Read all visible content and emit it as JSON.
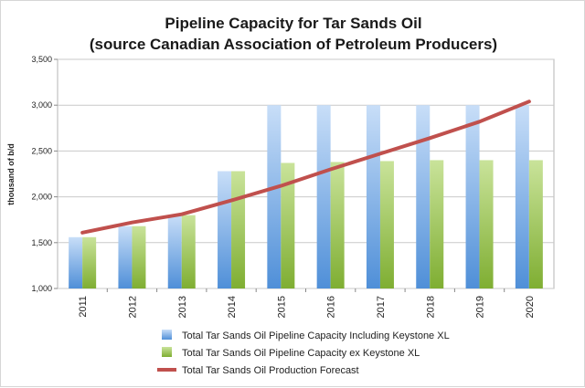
{
  "chart_data": {
    "type": "bar",
    "title_lines": [
      "Pipeline Capacity for Tar Sands Oil",
      "(source Canadian Association of Petroleum Producers)"
    ],
    "xlabel": "",
    "ylabel": "thousand of b/d",
    "ylim": [
      1000,
      3500
    ],
    "yticks": [
      "1,000",
      "1,500",
      "2,000",
      "2,500",
      "3,000",
      "3,500"
    ],
    "ytick_values": [
      1000,
      1500,
      2000,
      2500,
      3000,
      3500
    ],
    "grid": true,
    "legend_position": "bottom",
    "categories": [
      "2011",
      "2012",
      "2013",
      "2014",
      "2015",
      "2016",
      "2017",
      "2018",
      "2019",
      "2020"
    ],
    "series": [
      {
        "name": "Total Tar Sands Oil Pipeline Capacity Including Keystone XL",
        "type": "bar",
        "color": "#7fb2ea",
        "values": [
          1560,
          1680,
          1800,
          2280,
          3000,
          3000,
          3000,
          3000,
          3000,
          3000
        ]
      },
      {
        "name": "Total Tar Sands Oil Pipeline Capacity ex Keystone XL",
        "type": "bar",
        "color": "#a4cc5a",
        "values": [
          1560,
          1680,
          1800,
          2280,
          2370,
          2380,
          2390,
          2400,
          2400,
          2400
        ]
      },
      {
        "name": "Total Tar Sands Oil Production Forecast",
        "type": "line",
        "color": "#c0504d",
        "values": [
          1610,
          1720,
          1810,
          1960,
          2120,
          2300,
          2470,
          2640,
          2820,
          3040
        ]
      }
    ]
  }
}
